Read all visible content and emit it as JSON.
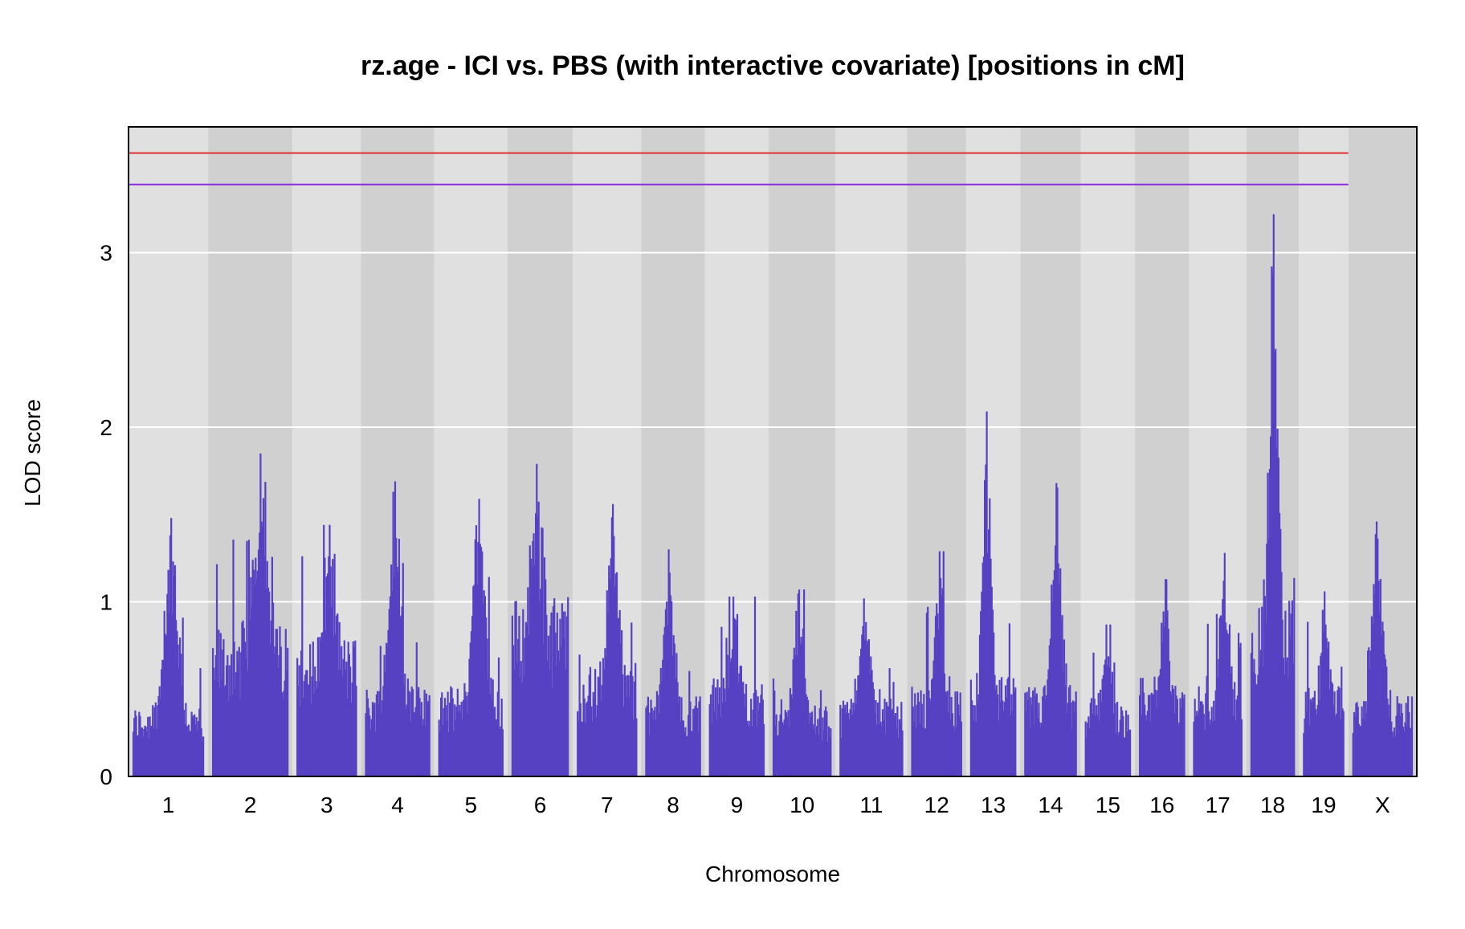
{
  "chart_data": {
    "type": "line",
    "title": "rz.age - ICI vs. PBS (with interactive covariate) [positions in cM]",
    "xlabel": "Chromosome",
    "ylabel": "LOD score",
    "ylim": [
      0,
      3.72
    ],
    "y_ticks": [
      "0",
      "1",
      "2",
      "3"
    ],
    "y_tick_values": [
      0,
      1,
      2,
      3
    ],
    "grid": true,
    "line_color": "#5541c2",
    "band_colors": [
      "#e0e0e0",
      "#d0d0d0"
    ],
    "thresholds": [
      {
        "value": 3.72,
        "color": "#1a1a7a"
      },
      {
        "value": 3.57,
        "color": "#e03030"
      },
      {
        "value": 3.39,
        "color": "#8a2be2"
      }
    ],
    "chromosomes": [
      {
        "label": "1",
        "peak": 1.48,
        "base": 0.35
      },
      {
        "label": "2",
        "peak": 1.85,
        "base": 0.75
      },
      {
        "label": "3",
        "peak": 1.44,
        "base": 0.7
      },
      {
        "label": "4",
        "peak": 1.69,
        "base": 0.45
      },
      {
        "label": "5",
        "peak": 1.59,
        "base": 0.45
      },
      {
        "label": "6",
        "peak": 1.79,
        "base": 0.9
      },
      {
        "label": "7",
        "peak": 1.56,
        "base": 0.55
      },
      {
        "label": "8",
        "peak": 1.3,
        "base": 0.4
      },
      {
        "label": "9",
        "peak": 1.03,
        "base": 0.5
      },
      {
        "label": "10",
        "peak": 1.07,
        "base": 0.35
      },
      {
        "label": "11",
        "peak": 1.02,
        "base": 0.4
      },
      {
        "label": "12",
        "peak": 1.29,
        "base": 0.45
      },
      {
        "label": "13",
        "peak": 2.09,
        "base": 0.5
      },
      {
        "label": "14",
        "peak": 1.68,
        "base": 0.45
      },
      {
        "label": "15",
        "peak": 0.87,
        "base": 0.4
      },
      {
        "label": "16",
        "peak": 1.13,
        "base": 0.5
      },
      {
        "label": "17",
        "peak": 1.28,
        "base": 0.45
      },
      {
        "label": "18",
        "peak": 3.22,
        "base": 0.9
      },
      {
        "label": "19",
        "peak": 1.06,
        "base": 0.45
      },
      {
        "label": "X",
        "peak": 1.46,
        "base": 0.4
      }
    ]
  }
}
